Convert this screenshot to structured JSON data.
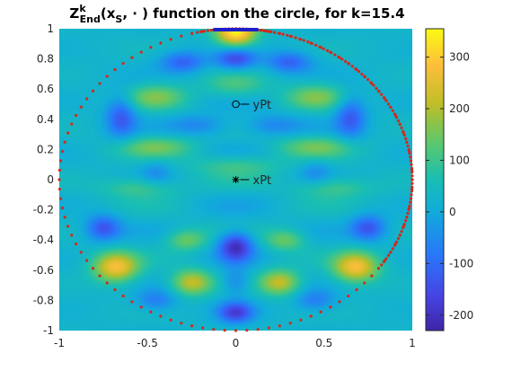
{
  "chart_data": {
    "type": "heatmap",
    "title": {
      "prefix": "Z",
      "sup": "k",
      "sub": "End",
      "open": "(x",
      "sub2": "S",
      "rest": ", ⋅ ) function on the circle, for k=15.4"
    },
    "xlim": [
      -1,
      1
    ],
    "ylim": [
      -1,
      1
    ],
    "x_ticks": [
      -1,
      -0.5,
      0,
      0.5,
      1
    ],
    "y_ticks": [
      -1,
      -0.8,
      -0.6,
      -0.4,
      -0.2,
      0,
      0.2,
      0.4,
      0.6,
      0.8,
      1
    ],
    "colorbar": {
      "colormap": "parula",
      "range": [
        -230,
        355
      ],
      "ticks": [
        -200,
        -100,
        0,
        100,
        200,
        300
      ]
    },
    "points": [
      {
        "label": "yPt",
        "x": 0.0,
        "y": 0.5,
        "marker": "circle"
      },
      {
        "label": "xPt",
        "x": 0.0,
        "y": 0.0,
        "marker": "star"
      }
    ],
    "boundary": {
      "color": "#d22a1c",
      "highlight_color": "#1e1ec8",
      "highlight_center_x": 0.0,
      "highlight_center_y": 1.0
    }
  }
}
